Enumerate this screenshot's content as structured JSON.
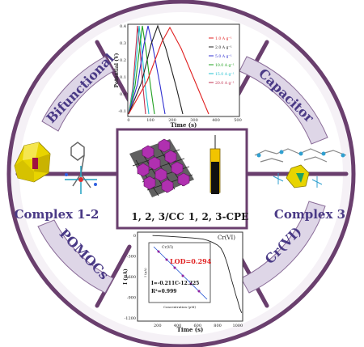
{
  "ring_labels": {
    "bifunctional": "Bifunctional",
    "capacitor": "Capacitor",
    "pomocs": "POMOCs",
    "cr_vi": "Cr(VI)"
  },
  "complex_left": "Complex 1-2",
  "complex_right": "Complex 3",
  "center": {
    "left_label": "1, 2, 3/CC",
    "right_label": "1, 2, 3-CPE"
  },
  "gcd_chart": {
    "ylabel": "Potential (V)",
    "xlabel": "Time (s)",
    "yticks": [
      "0.4",
      "0.3",
      "0.2",
      "0.1",
      "0.0",
      "-0.1"
    ],
    "xticks": [
      "0",
      "100",
      "200",
      "300",
      "400",
      "500"
    ],
    "legend": [
      "1.0 A g⁻¹",
      "2.0 A g⁻¹",
      "5.0 A g⁻¹",
      "10.0 A g⁻¹",
      "15.0 A g⁻¹",
      "20.0 A g⁻¹"
    ],
    "colors": [
      "#e02020",
      "#202020",
      "#3030d0",
      "#20a020",
      "#20c0d0",
      "#c03050"
    ]
  },
  "chart_data": {
    "type": "line",
    "title": "Cr(VI)",
    "xlabel": "Time (s)",
    "ylabel": "I (μA)",
    "x_ticks": [
      "200",
      "400",
      "600",
      "800",
      "1000"
    ],
    "y_ticks": [
      "0",
      "-300",
      "-600",
      "-900",
      "-1200"
    ],
    "xlim": [
      0,
      1050
    ],
    "ylim": [
      -1250,
      50
    ],
    "series": [
      {
        "x": [
          150,
          300,
          450,
          550,
          650,
          700,
          750,
          800,
          830,
          860,
          880,
          900,
          920,
          940,
          960,
          980,
          1000,
          1020,
          1040
        ],
        "y": [
          0,
          -10,
          -25,
          -35,
          -50,
          -70,
          -100,
          -140,
          -180,
          -260,
          -340,
          -430,
          -540,
          -650,
          -750,
          -860,
          -950,
          -1060,
          -1130
        ]
      }
    ],
    "inset": {
      "title": "Cr(VI)",
      "lod_label": "LOD=0.294",
      "equation": "I=-0.211C-12.225",
      "r2": "R²=0.999",
      "xlabel": "Concentration (μM)",
      "ylabel": "I (μA)"
    }
  }
}
